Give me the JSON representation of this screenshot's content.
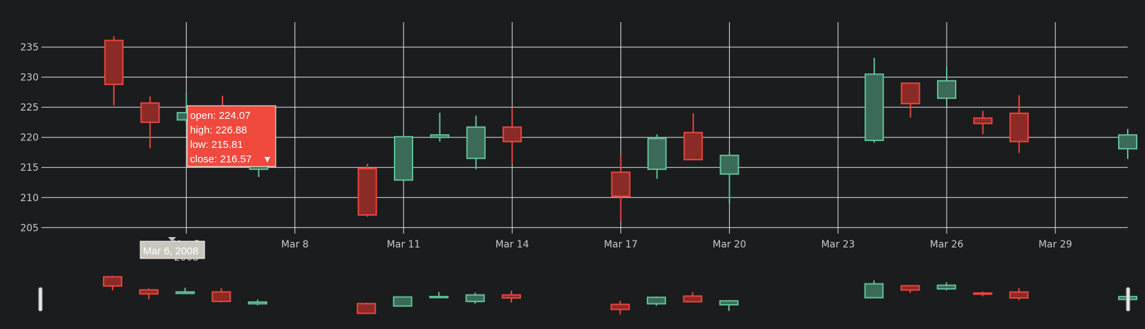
{
  "chart_data": {
    "type": "candlestick",
    "title": "",
    "xlabel": "",
    "ylabel": "",
    "ylim": [
      204,
      238
    ],
    "yticks": [
      205,
      210,
      215,
      220,
      225,
      230,
      235
    ],
    "xrange": [
      "2008-03-01",
      "2008-03-31"
    ],
    "xticks": [
      {
        "date": "2008-03-05",
        "label": "Mar 5",
        "sublabel": "2008"
      },
      {
        "date": "2008-03-08",
        "label": "Mar 8"
      },
      {
        "date": "2008-03-11",
        "label": "Mar 11"
      },
      {
        "date": "2008-03-14",
        "label": "Mar 14"
      },
      {
        "date": "2008-03-17",
        "label": "Mar 17"
      },
      {
        "date": "2008-03-20",
        "label": "Mar 20"
      },
      {
        "date": "2008-03-23",
        "label": "Mar 23"
      },
      {
        "date": "2008-03-26",
        "label": "Mar 26"
      },
      {
        "date": "2008-03-29",
        "label": "Mar 29"
      }
    ],
    "grid": true,
    "rangeslider": true,
    "colors": {
      "increasing": "#5fbf98",
      "decreasing": "#e8453c",
      "grid": "#e6e6e6",
      "tick_text": "#c8c8c8"
    },
    "candles": [
      {
        "date": "2008-03-03",
        "open": 236.1,
        "high": 236.8,
        "low": 225.3,
        "close": 228.8
      },
      {
        "date": "2008-03-04",
        "open": 225.7,
        "high": 226.8,
        "low": 218.2,
        "close": 222.5
      },
      {
        "date": "2008-03-05",
        "open": 222.9,
        "high": 227.4,
        "low": 222.4,
        "close": 224.1
      },
      {
        "date": "2008-03-06",
        "open": 224.07,
        "high": 226.88,
        "low": 215.81,
        "close": 216.57
      },
      {
        "date": "2008-03-07",
        "open": 214.7,
        "high": 218.1,
        "low": 213.4,
        "close": 216.1
      },
      {
        "date": "2008-03-10",
        "open": 214.8,
        "high": 215.6,
        "low": 206.8,
        "close": 207.1
      },
      {
        "date": "2008-03-11",
        "open": 212.9,
        "high": 220.3,
        "low": 212.6,
        "close": 220.1
      },
      {
        "date": "2008-03-12",
        "open": 220.0,
        "high": 224.1,
        "low": 219.3,
        "close": 220.4
      },
      {
        "date": "2008-03-13",
        "open": 216.5,
        "high": 223.6,
        "low": 214.7,
        "close": 221.7
      },
      {
        "date": "2008-03-14",
        "open": 221.7,
        "high": 225.0,
        "low": 215.6,
        "close": 219.3
      },
      {
        "date": "2008-03-17",
        "open": 214.2,
        "high": 217.0,
        "low": 206.1,
        "close": 210.2
      },
      {
        "date": "2008-03-18",
        "open": 214.7,
        "high": 220.5,
        "low": 213.1,
        "close": 219.8
      },
      {
        "date": "2008-03-19",
        "open": 220.8,
        "high": 224.0,
        "low": 216.2,
        "close": 216.3
      },
      {
        "date": "2008-03-20",
        "open": 213.9,
        "high": 217.6,
        "low": 209.0,
        "close": 217.0
      },
      {
        "date": "2008-03-24",
        "open": 219.5,
        "high": 233.2,
        "low": 219.1,
        "close": 230.5
      },
      {
        "date": "2008-03-25",
        "open": 229.0,
        "high": 229.1,
        "low": 223.3,
        "close": 225.6
      },
      {
        "date": "2008-03-26",
        "open": 226.5,
        "high": 231.7,
        "low": 225.2,
        "close": 229.4
      },
      {
        "date": "2008-03-27",
        "open": 223.2,
        "high": 224.4,
        "low": 220.5,
        "close": 222.3
      },
      {
        "date": "2008-03-28",
        "open": 224.0,
        "high": 227.0,
        "low": 217.4,
        "close": 219.3
      },
      {
        "date": "2008-03-31",
        "open": 218.1,
        "high": 221.4,
        "low": 216.4,
        "close": 220.4
      }
    ]
  },
  "hover": {
    "open": "open: 224.07",
    "high": "high: 226.88",
    "low": "low: 215.81",
    "close": "close: 216.57",
    "direction_symbol": "▼",
    "x_label": "Mar 6, 2008"
  }
}
